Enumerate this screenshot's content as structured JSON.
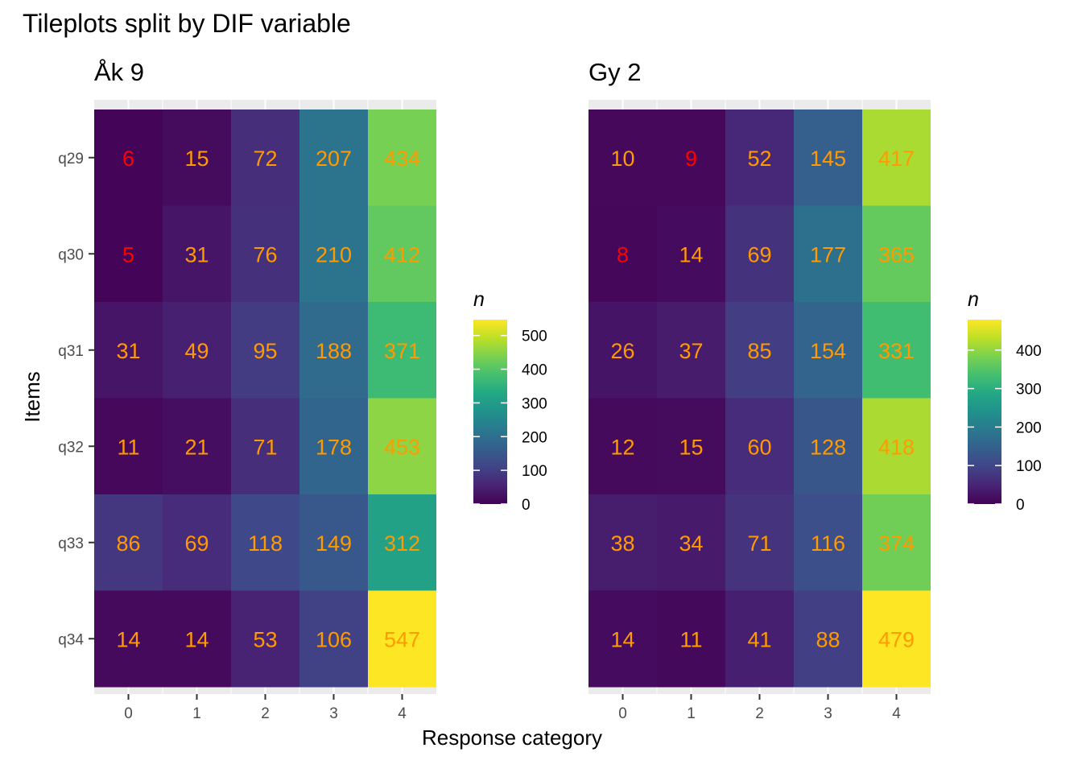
{
  "chart_data": {
    "type": "heatmap",
    "title": "Tileplots split by DIF variable",
    "xlabel": "Response category",
    "ylabel": "Items",
    "x_categories": [
      "0",
      "1",
      "2",
      "3",
      "4"
    ],
    "y_categories": [
      "q29",
      "q30",
      "q31",
      "q32",
      "q33",
      "q34"
    ],
    "legend_title": "n",
    "colorscale": "viridis",
    "label_colors": {
      "low": "#ff0000",
      "normal": "#ff9a00"
    },
    "panels": [
      {
        "title": "Åk 9",
        "values": [
          [
            6,
            15,
            72,
            207,
            434
          ],
          [
            5,
            31,
            76,
            210,
            412
          ],
          [
            31,
            49,
            95,
            188,
            371
          ],
          [
            11,
            21,
            71,
            178,
            453
          ],
          [
            86,
            69,
            118,
            149,
            312
          ],
          [
            14,
            14,
            53,
            106,
            547
          ]
        ],
        "value_range": [
          0,
          547
        ],
        "legend_ticks": [
          0,
          100,
          200,
          300,
          400,
          500
        ]
      },
      {
        "title": "Gy 2",
        "values": [
          [
            10,
            9,
            52,
            145,
            417
          ],
          [
            8,
            14,
            69,
            177,
            365
          ],
          [
            26,
            37,
            85,
            154,
            331
          ],
          [
            12,
            15,
            60,
            128,
            418
          ],
          [
            38,
            34,
            71,
            116,
            374
          ],
          [
            14,
            11,
            41,
            88,
            479
          ]
        ],
        "value_range": [
          0,
          479
        ],
        "legend_ticks": [
          0,
          100,
          200,
          300,
          400
        ]
      }
    ]
  }
}
